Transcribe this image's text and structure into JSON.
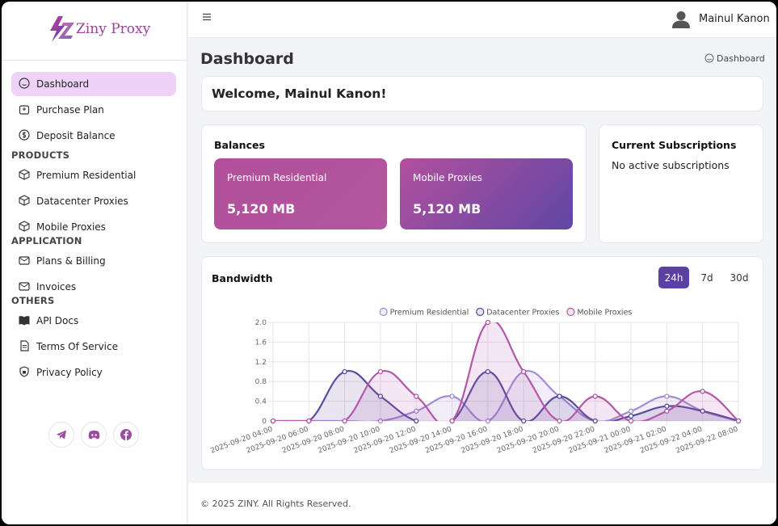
{
  "brand": "Ziny Proxy",
  "sidebar": {
    "main": [
      "Dashboard",
      "Purchase Plan",
      "Deposit Balance"
    ],
    "sections": [
      {
        "heading": "PRODUCTS",
        "items": [
          "Premium Residential",
          "Datacenter Proxies",
          "Mobile Proxies"
        ]
      },
      {
        "heading": "APPLICATION",
        "items": [
          "Plans & Billing",
          "Invoices"
        ]
      },
      {
        "heading": "OTHERS",
        "items": [
          "API Docs",
          "Terms Of Service",
          "Privacy Policy"
        ]
      }
    ]
  },
  "header": {
    "user": "Mainul Kanon"
  },
  "page": {
    "title": "Dashboard",
    "breadcrumb": "Dashboard"
  },
  "welcome": "Welcome, Mainul Kanon!",
  "balances": {
    "title": "Balances",
    "cards": [
      {
        "label": "Premium Residential",
        "value": "5,120 MB"
      },
      {
        "label": "Mobile Proxies",
        "value": "5,120 MB"
      }
    ]
  },
  "subscriptions": {
    "title": "Current Subscriptions",
    "text": "No active subscriptions"
  },
  "bandwidth": {
    "title": "Bandwidth",
    "ranges": [
      "24h",
      "7d",
      "30d"
    ]
  },
  "chart_data": {
    "type": "line",
    "categories": [
      "2025-09-20 04:00",
      "2025-09-20 06:00",
      "2025-09-20 08:00",
      "2025-09-20 10:00",
      "2025-09-20 12:00",
      "2025-09-20 14:00",
      "2025-09-20 16:00",
      "2025-09-20 18:00",
      "2025-09-20 20:00",
      "2025-09-20 22:00",
      "2025-09-21 00:00",
      "2025-09-21 02:00",
      "2025-09-22 04:00",
      "2025-09-22 08:00"
    ],
    "series": [
      {
        "name": "Premium Residential",
        "color": "#a58ad8",
        "values": [
          0,
          0,
          0,
          0,
          0.2,
          0.5,
          0,
          1.0,
          0.5,
          0,
          0.2,
          0.5,
          0.2,
          0
        ]
      },
      {
        "name": "Datacenter Proxies",
        "color": "#5a4a9e",
        "values": [
          0,
          0,
          1.0,
          0.5,
          0,
          0,
          1.0,
          0,
          0.5,
          0,
          0.1,
          0.3,
          0.2,
          0
        ]
      },
      {
        "name": "Mobile Proxies",
        "color": "#b457a8",
        "values": [
          0,
          0,
          0,
          1.0,
          0.5,
          0,
          2.0,
          1.0,
          0,
          0.5,
          0,
          0.2,
          0.6,
          0
        ]
      }
    ],
    "ylim": [
      0,
      2
    ],
    "yticks": [
      0,
      0.4,
      0.8,
      1.2,
      1.6,
      {
        "value": 2,
        "label": "2.0"
      }
    ],
    "grid": true,
    "legend": "top"
  },
  "footer": "© 2025 ZINY. All Rights Reserved."
}
